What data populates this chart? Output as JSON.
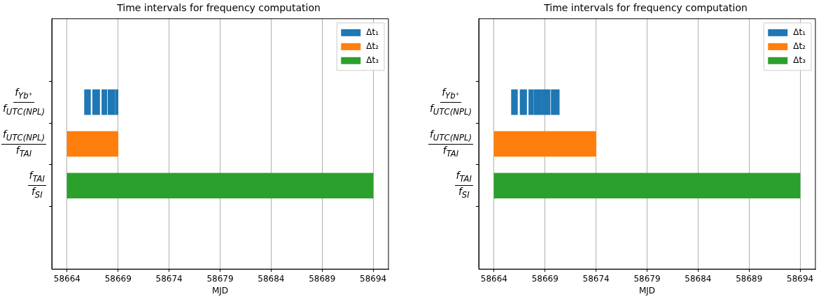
{
  "chart_data": [
    {
      "type": "bar",
      "orientation": "horizontal",
      "title": "Time intervals for frequency computation",
      "xlabel": "MJD",
      "categories": [
        "f$_{Yb⁺}$ f$_{UTC(NPL)}$",
        "f$_{UTC(NPL)}$ f$_{TAI}$",
        "f$_{TAI}$ f$_{SI}$"
      ],
      "xlim": [
        58662.5,
        58695.5
      ],
      "xticks": [
        58664,
        58669,
        58674,
        58679,
        58684,
        58689,
        58694
      ],
      "grid": "x",
      "legend": "top right",
      "series": [
        {
          "name": "Δt₁",
          "color": "#1f77b4",
          "values": [
            0.6,
            null,
            null
          ],
          "base": [
            58665.7,
            null,
            null
          ]
        },
        {
          "color": "#1f77b4",
          "values": [
            0.7,
            null,
            null
          ],
          "base": [
            58666.5,
            null,
            null
          ]
        },
        {
          "color": "#1f77b4",
          "values": [
            0.5,
            null,
            null
          ],
          "base": [
            58667.4,
            null,
            null
          ]
        },
        {
          "color": "#1f77b4",
          "values": [
            0.7,
            null,
            null
          ],
          "base": [
            58668.0,
            null,
            null
          ]
        },
        {
          "color": "#1f77b4",
          "values": [
            0.25,
            null,
            null
          ],
          "base": [
            58668.75,
            null,
            null
          ]
        },
        {
          "name": "Δt₂",
          "color": "#ff7f0e",
          "values": [
            null,
            5,
            null
          ],
          "base": [
            null,
            58664,
            null
          ]
        },
        {
          "name": "Δt₃",
          "color": "#2ca02c",
          "values": [
            null,
            null,
            30
          ],
          "base": [
            null,
            null,
            58664
          ]
        }
      ]
    },
    {
      "type": "bar",
      "orientation": "horizontal",
      "title": "Time intervals for frequency computation",
      "xlabel": "MJD",
      "categories": [
        "f$_{Yb⁺}$ f$_{UTC(NPL)}$",
        "f$_{UTC(NPL)}$ f$_{TAI}$",
        "f$_{TAI}$ f$_{SI}$"
      ],
      "xlim": [
        58662.5,
        58695.5
      ],
      "xticks": [
        58664,
        58669,
        58674,
        58679,
        58684,
        58689,
        58694
      ],
      "grid": "x",
      "legend": "top right",
      "series": [
        {
          "name": "Δt₁",
          "color": "#1f77b4",
          "values": [
            0.6,
            null,
            null
          ],
          "base": [
            58665.7,
            null,
            null
          ]
        },
        {
          "color": "#1f77b4",
          "values": [
            0.65,
            null,
            null
          ],
          "base": [
            58666.55,
            null,
            null
          ]
        },
        {
          "color": "#1f77b4",
          "values": [
            0.45,
            null,
            null
          ],
          "base": [
            58667.4,
            null,
            null
          ]
        },
        {
          "color": "#1f77b4",
          "values": [
            0.75,
            null,
            null
          ],
          "base": [
            58667.9,
            null,
            null
          ]
        },
        {
          "color": "#1f77b4",
          "values": [
            0.8,
            null,
            null
          ],
          "base": [
            58668.7,
            null,
            null
          ]
        },
        {
          "color": "#1f77b4",
          "values": [
            0.8,
            null,
            null
          ],
          "base": [
            58669.6,
            null,
            null
          ]
        },
        {
          "name": "Δt₂",
          "color": "#ff7f0e",
          "values": [
            null,
            10,
            null
          ],
          "base": [
            null,
            58664,
            null
          ]
        },
        {
          "name": "Δt₃",
          "color": "#2ca02c",
          "values": [
            null,
            null,
            30
          ],
          "base": [
            null,
            null,
            58664
          ]
        }
      ]
    }
  ]
}
